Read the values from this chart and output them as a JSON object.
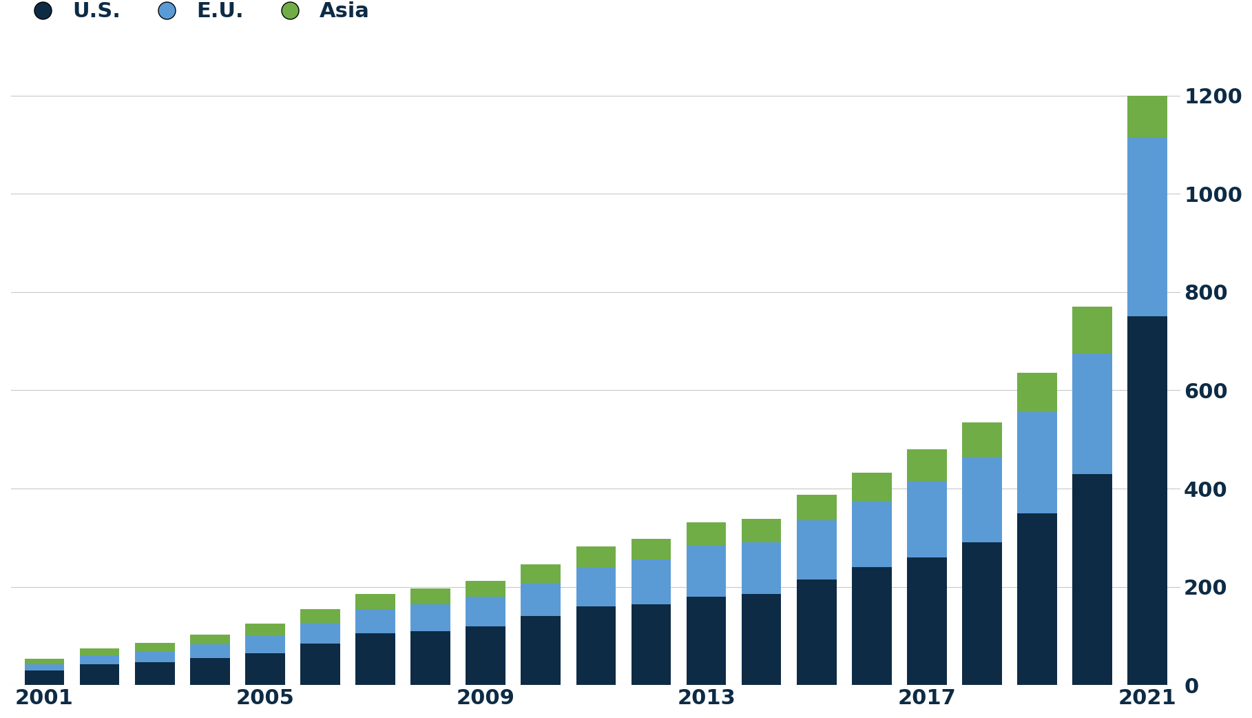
{
  "years": [
    2001,
    2002,
    2003,
    2004,
    2005,
    2006,
    2007,
    2008,
    2009,
    2010,
    2011,
    2012,
    2013,
    2014,
    2015,
    2016,
    2017,
    2018,
    2019,
    2020,
    2021
  ],
  "us_values": [
    30,
    42,
    47,
    55,
    65,
    85,
    105,
    110,
    120,
    140,
    160,
    165,
    180,
    185,
    215,
    240,
    260,
    290,
    350,
    430,
    750
  ],
  "eu_values": [
    12,
    18,
    22,
    28,
    35,
    42,
    50,
    55,
    60,
    68,
    80,
    90,
    105,
    105,
    120,
    135,
    155,
    175,
    205,
    245,
    365
  ],
  "asia_values": [
    12,
    15,
    17,
    20,
    25,
    28,
    30,
    32,
    32,
    38,
    42,
    42,
    47,
    48,
    52,
    57,
    65,
    70,
    80,
    95,
    85
  ],
  "colors": {
    "us": "#0d2b45",
    "eu": "#5b9bd5",
    "asia": "#70ad47"
  },
  "background_color": "#ffffff",
  "grid_color": "#c8c8c8",
  "tick_color": "#0d2b45",
  "legend_labels": [
    "U.S.",
    "E.U.",
    "Asia"
  ],
  "ylim": [
    0,
    1250
  ],
  "yticks": [
    0,
    200,
    400,
    600,
    800,
    1000,
    1200
  ],
  "xtick_positions": [
    2001,
    2005,
    2009,
    2013,
    2017,
    2021
  ],
  "bar_width": 0.72,
  "legend_dot_size": 200,
  "legend_fontsize": 22,
  "tick_fontsize": 22
}
